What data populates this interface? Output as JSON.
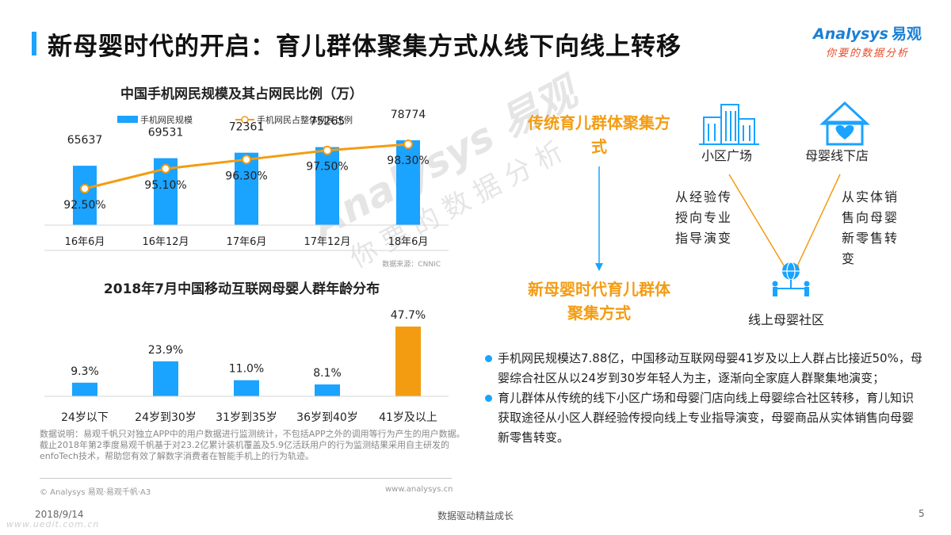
{
  "header": {
    "title": "新母婴时代的开启：育儿群体聚集方式从线下向线上转移",
    "logo_brand": "nalysys",
    "logo_initial": "A",
    "logo_cn": "易观",
    "logo_tagline": "你要的数据分析"
  },
  "watermark": {
    "line1": "Analysys 易观",
    "line2": "你要的数据分析"
  },
  "chart_data": [
    {
      "type": "bar+line",
      "title": "中国手机网民规模及其占网民比例（万）",
      "categories": [
        "16年6月",
        "16年12月",
        "17年6月",
        "17年12月",
        "18年6月"
      ],
      "series": [
        {
          "name": "手机网民规模",
          "kind": "bar",
          "values": [
            65637,
            69531,
            72361,
            75265,
            78774
          ],
          "labels": [
            "65637",
            "69531",
            "72361",
            "75265",
            "78774"
          ],
          "color": "#1aa3ff"
        },
        {
          "name": "手机网民占整体网民比例",
          "kind": "line",
          "values": [
            92.5,
            95.1,
            96.3,
            97.5,
            98.3
          ],
          "labels": [
            "92.50%",
            "95.10%",
            "96.30%",
            "97.50%",
            "98.30%"
          ],
          "color": "#f39c12"
        }
      ],
      "source": "数据来源：CNNIC",
      "legend": "top"
    },
    {
      "type": "bar",
      "title": "2018年7月中国移动互联网母婴人群年龄分布",
      "categories": [
        "24岁以下",
        "24岁到30岁",
        "31岁到35岁",
        "36岁到40岁",
        "41岁及以上"
      ],
      "values": [
        9.3,
        23.9,
        11.0,
        8.1,
        47.7
      ],
      "labels": [
        "9.3%",
        "23.9%",
        "11.0%",
        "8.1%",
        "47.7%"
      ],
      "colors": [
        "#1aa3ff",
        "#1aa3ff",
        "#1aa3ff",
        "#1aa3ff",
        "#f39c12"
      ]
    }
  ],
  "data_note": "数据说明：易观千帆只对独立APP中的用户数据进行监测统计，不包括APP之外的调用等行为产生的用户数据。截止2018年第2季度易观千帆基于对23.2亿累计装机覆盖及5.9亿活跃用户的行为监测结果采用自主研发的enfoTech技术，帮助您有效了解数字消费者在智能手机上的行为轨迹。",
  "copyright": "© Analysys 易观·易观千帆·A3",
  "website": "www.analysys.cn",
  "diagram": {
    "traditional_title": "传统育儿群体聚集方式",
    "new_title": "新母婴时代育儿群体聚集方式",
    "node_community": "小区广场",
    "node_store": "母婴线下店",
    "node_online": "线上母婴社区",
    "left_transition": "从经验传授向专业指导演变",
    "right_transition": "从实体销售向母婴新零售转变"
  },
  "bullets": [
    "手机网民规模达7.88亿，中国移动互联网母婴41岁及以上人群占比接近50%，母婴综合社区从以24岁到30岁年轻人为主，逐渐向全家庭人群聚集地演变；",
    "育儿群体从传统的线下小区广场和母婴门店向线上母婴综合社区转移，育儿知识获取途径从小区人群经验传授向线上专业指导演变，母婴商品从实体销售向母婴新零售转变。"
  ],
  "footer": {
    "date": "2018/9/14",
    "site_watermark": "www.uedit.com.cn",
    "center": "数据驱动精益成长",
    "page": "5"
  }
}
